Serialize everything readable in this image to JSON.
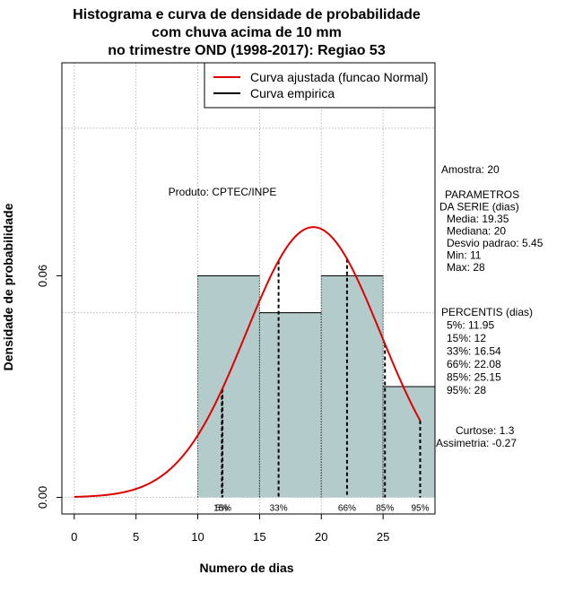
{
  "chart_data": {
    "type": "histogram",
    "title_lines": [
      "Histograma e curva de densidade de probabilidade",
      "com chuva acima de 10 mm",
      "no trimestre OND (1998-2017): Regiao 53"
    ],
    "xlabel": "Numero de dias",
    "ylabel": "Densidade de probabilidade",
    "xlim": [
      -1,
      29.2
    ],
    "ylim": [
      -0.0045,
      0.1177
    ],
    "x_ticks": [
      0,
      5,
      10,
      15,
      20,
      25
    ],
    "x_tick_labels": [
      "0",
      "5",
      "10",
      "15",
      "20",
      "25"
    ],
    "y_ticks": [
      0.0,
      0.06
    ],
    "y_tick_labels": [
      "0.00",
      "0.06"
    ],
    "grid_y": [
      0.0,
      0.05,
      0.1
    ],
    "bins": [
      {
        "left": 10,
        "right": 15,
        "density": 0.06
      },
      {
        "left": 15,
        "right": 20,
        "density": 0.05
      },
      {
        "left": 20,
        "right": 25,
        "density": 0.06
      },
      {
        "left": 25,
        "right": 29.2,
        "density": 0.03
      }
    ],
    "bar_color": "#b3cbcb",
    "normal_fit": {
      "mean": 19.35,
      "sd": 5.45,
      "x_from": 0,
      "x_to": 28,
      "color": "#e00000"
    },
    "percentile_lines": [
      {
        "x": 11.95,
        "label": "5%"
      },
      {
        "x": 12,
        "label": "15%"
      },
      {
        "x": 16.54,
        "label": "33%"
      },
      {
        "x": 22.08,
        "label": "66%"
      },
      {
        "x": 25.15,
        "label": "85%"
      },
      {
        "x": 28,
        "label": "95%"
      }
    ],
    "legend": [
      {
        "label": "Curva ajustada (funcao Normal)",
        "color": "#e00000"
      },
      {
        "label": "Curva empirica",
        "color": "#000000"
      }
    ],
    "product_label": "Produto: CPTEC/INPE",
    "sample": "Amostra: 20",
    "parametros": [
      "PARAMETROS",
      "DA SERIE (dias)",
      "Media: 19.35",
      "Mediana: 20",
      "Desvio padrao: 5.45",
      "Min: 11",
      "Max: 28"
    ],
    "percentis": [
      "PERCENTIS (dias)",
      "5%: 11.95",
      "15%: 12",
      "33%: 16.54",
      "66%: 22.08",
      "85%: 25.15",
      "95%: 28"
    ],
    "curtose": "Curtose: 1.3",
    "assimetria": "Assimetria: -0.27"
  }
}
